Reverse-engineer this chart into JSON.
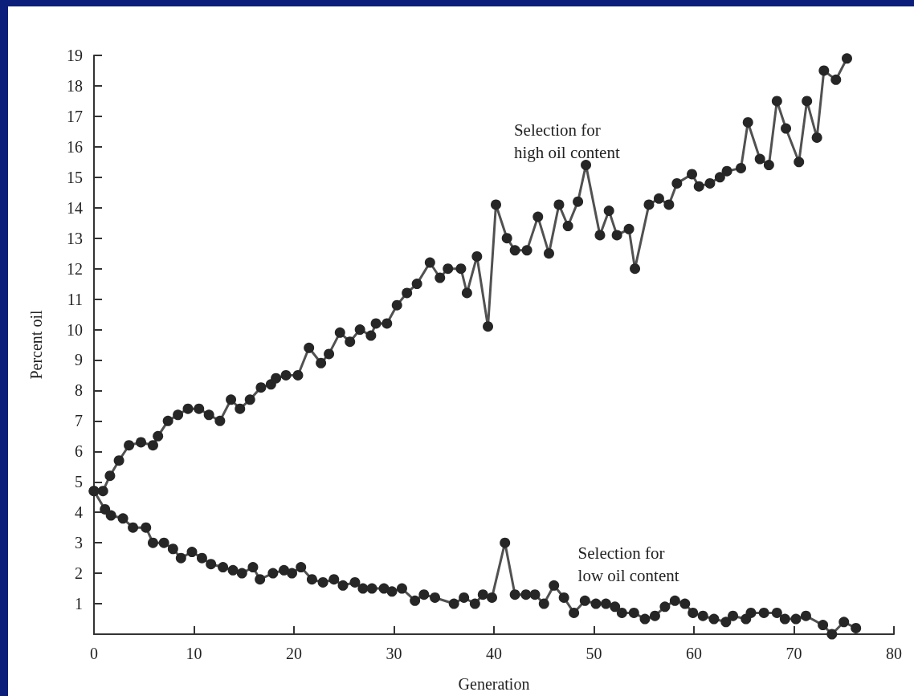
{
  "chart_data": {
    "type": "line",
    "xlabel": "Generation",
    "ylabel": "Percent oil",
    "xlim": [
      0,
      80
    ],
    "xticks": [
      0,
      10,
      20,
      30,
      40,
      50,
      60,
      70,
      80
    ],
    "ylim": [
      0,
      19
    ],
    "yticks": [
      1,
      2,
      3,
      4,
      5,
      6,
      7,
      8,
      9,
      10,
      11,
      12,
      13,
      14,
      15,
      16,
      17,
      18,
      19
    ],
    "grid": false,
    "marker": "circle",
    "line_style": "solid",
    "series": [
      {
        "color": "#262626",
        "x": [
          0,
          0.9,
          1.6,
          2.5,
          3.5,
          4.7,
          5.9,
          6.4,
          7.4,
          8.4,
          9.4,
          10.5,
          11.5,
          12.6,
          13.7,
          14.6,
          15.6,
          16.7,
          17.7,
          18.2,
          19.2,
          20.4,
          21.5,
          22.7,
          23.5,
          24.6,
          25.6,
          26.6,
          27.7,
          28.2,
          29.3,
          30.3,
          31.3,
          32.3,
          33.6,
          34.6,
          35.4,
          36.7,
          37.3,
          38.3,
          39.4,
          40.2,
          41.3,
          42.1,
          43.3,
          44.4,
          45.5,
          46.5,
          47.4,
          48.4,
          49.2,
          50.6,
          51.5,
          52.3,
          53.5,
          54.1,
          55.5,
          56.5,
          57.5,
          58.3,
          59.8,
          60.5,
          61.6,
          62.6,
          63.3,
          64.7,
          65.4,
          66.6,
          67.5,
          68.3,
          69.2,
          70.5,
          71.3,
          72.3,
          73.0,
          74.2,
          75.3
        ],
        "values": [
          4.7,
          4.7,
          5.2,
          5.7,
          6.2,
          6.3,
          6.2,
          6.5,
          7.0,
          7.2,
          7.4,
          7.4,
          7.2,
          7.0,
          7.7,
          7.4,
          7.7,
          8.1,
          8.2,
          8.4,
          8.5,
          8.5,
          9.4,
          8.9,
          9.2,
          9.9,
          9.6,
          10.0,
          9.8,
          10.2,
          10.2,
          10.8,
          11.2,
          11.5,
          12.2,
          11.7,
          12.0,
          12.0,
          11.2,
          12.4,
          10.1,
          14.1,
          13.0,
          12.6,
          12.6,
          13.7,
          12.5,
          14.1,
          13.4,
          14.2,
          15.4,
          13.1,
          13.9,
          13.1,
          13.3,
          12.0,
          14.1,
          14.3,
          14.1,
          14.8,
          15.1,
          14.7,
          14.8,
          15.0,
          15.2,
          15.3,
          16.8,
          15.6,
          15.4,
          17.5,
          16.6,
          15.5,
          17.5,
          16.3,
          18.5,
          18.2,
          18.9
        ]
      },
      {
        "color": "#262626",
        "x": [
          0,
          1.1,
          1.7,
          2.9,
          3.9,
          5.2,
          5.9,
          7.0,
          7.9,
          8.7,
          9.8,
          10.8,
          11.7,
          12.9,
          13.9,
          14.8,
          15.9,
          16.6,
          17.9,
          19.0,
          19.8,
          20.7,
          21.8,
          22.9,
          24.0,
          24.9,
          26.1,
          26.9,
          27.8,
          29.0,
          29.8,
          30.8,
          32.1,
          33.0,
          34.1,
          36.0,
          37.0,
          38.1,
          38.9,
          39.8,
          41.1,
          42.1,
          43.2,
          44.1,
          45.0,
          46.0,
          47.0,
          48.0,
          49.1,
          50.2,
          51.2,
          52.1,
          52.8,
          54.0,
          55.1,
          56.1,
          57.1,
          58.1,
          59.1,
          59.9,
          60.9,
          62.0,
          63.2,
          63.9,
          65.2,
          65.7,
          67.0,
          68.3,
          69.1,
          70.2,
          71.2,
          72.9,
          73.8,
          75.0,
          76.2
        ],
        "values": [
          4.7,
          4.1,
          3.9,
          3.8,
          3.5,
          3.5,
          3.0,
          3.0,
          2.8,
          2.5,
          2.7,
          2.5,
          2.3,
          2.2,
          2.1,
          2.0,
          2.2,
          1.8,
          2.0,
          2.1,
          2.0,
          2.2,
          1.8,
          1.7,
          1.8,
          1.6,
          1.7,
          1.5,
          1.5,
          1.5,
          1.4,
          1.5,
          1.1,
          1.3,
          1.2,
          1.0,
          1.2,
          1.0,
          1.3,
          1.2,
          3.0,
          1.3,
          1.3,
          1.3,
          1.0,
          1.6,
          1.2,
          0.7,
          1.1,
          1.0,
          1.0,
          0.9,
          0.7,
          0.7,
          0.5,
          0.6,
          0.9,
          1.1,
          1.0,
          0.7,
          0.6,
          0.5,
          0.4,
          0.6,
          0.5,
          0.7,
          0.7,
          0.7,
          0.5,
          0.5,
          0.6,
          0.3,
          0.0,
          0.4,
          0.2
        ]
      }
    ],
    "annotations": [
      "Selection for\nhigh oil content",
      "Selection for\nlow oil content"
    ]
  }
}
